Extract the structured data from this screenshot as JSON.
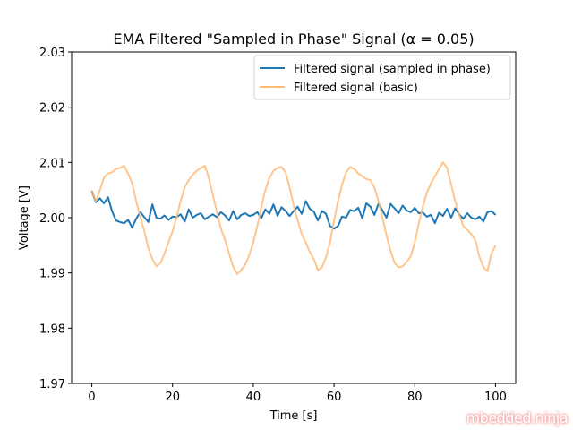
{
  "chart_data": {
    "type": "line",
    "title": "EMA Filtered \"Sampled in Phase\" Signal (α = 0.05)",
    "xlabel": "Time [s]",
    "ylabel": "Voltage [V]",
    "xlim": [
      -5,
      105
    ],
    "ylim": [
      1.97,
      2.03
    ],
    "xticks": [
      0,
      20,
      40,
      60,
      80,
      100
    ],
    "xtick_labels": [
      "0",
      "20",
      "40",
      "60",
      "80",
      "100"
    ],
    "yticks": [
      1.97,
      1.98,
      1.99,
      2.0,
      2.01,
      2.02,
      2.03
    ],
    "ytick_labels": [
      "1.97",
      "1.98",
      "1.99",
      "2.00",
      "2.01",
      "2.02",
      "2.03"
    ],
    "grid": false,
    "legend_position": "top-right",
    "series": [
      {
        "name": "Filtered signal (sampled in phase)",
        "color": "#1f77b4",
        "x": [
          0,
          1,
          2,
          3,
          4,
          5,
          6,
          7,
          8,
          9,
          10,
          11,
          12,
          13,
          14,
          15,
          16,
          17,
          18,
          19,
          20,
          21,
          22,
          23,
          24,
          25,
          26,
          27,
          28,
          29,
          30,
          31,
          32,
          33,
          34,
          35,
          36,
          37,
          38,
          39,
          40,
          41,
          42,
          43,
          44,
          45,
          46,
          47,
          48,
          49,
          50,
          51,
          52,
          53,
          54,
          55,
          56,
          57,
          58,
          59,
          60,
          61,
          62,
          63,
          64,
          65,
          66,
          67,
          68,
          69,
          70,
          71,
          72,
          73,
          74,
          75,
          76,
          77,
          78,
          79,
          80,
          81,
          82,
          83,
          84,
          85,
          86,
          87,
          88,
          89,
          90,
          91,
          92,
          93,
          94,
          95,
          96,
          97,
          98,
          99,
          100
        ],
        "y": [
          2.0048,
          2.0028,
          2.0035,
          2.0026,
          2.0037,
          2.0012,
          1.9995,
          1.9992,
          1.999,
          1.9996,
          1.9982,
          1.9998,
          2.001,
          2.0001,
          1.9992,
          2.0024,
          2.0,
          1.9998,
          2.0004,
          1.9996,
          2.0002,
          2.0001,
          2.0006,
          1.9993,
          2.0015,
          2.0,
          2.0005,
          2.0008,
          1.9997,
          2.0002,
          2.0006,
          2.0001,
          2.001,
          2.0004,
          1.9995,
          2.0012,
          1.9997,
          2.0005,
          2.0008,
          2.0003,
          2.0005,
          2.001,
          1.9999,
          2.0015,
          2.0007,
          2.0024,
          2.0003,
          2.0019,
          2.0012,
          2.0003,
          2.0012,
          2.002,
          2.0007,
          2.003,
          2.0016,
          2.0011,
          1.9995,
          2.0012,
          2.0007,
          1.9985,
          1.998,
          1.9985,
          2.0002,
          2.0,
          2.0014,
          2.0012,
          2.0018,
          1.9999,
          2.0026,
          2.002,
          2.0005,
          2.0025,
          2.0013,
          2.0,
          2.0025,
          2.0017,
          2.0008,
          2.0022,
          2.0013,
          2.001,
          2.0018,
          2.0008,
          2.0009,
          2.0002,
          2.0005,
          1.999,
          2.0009,
          2.0003,
          2.0016,
          2.0,
          2.0017,
          2.0006,
          1.9998,
          2.0008,
          2.0,
          1.9997,
          2.0002,
          1.9993,
          2.001,
          2.0012,
          2.0005
        ]
      },
      {
        "name": "Filtered signal (basic)",
        "color": "#ffbb78",
        "x": [
          0,
          1,
          2,
          3,
          4,
          5,
          6,
          7,
          8,
          9,
          10,
          11,
          12,
          13,
          14,
          15,
          16,
          17,
          18,
          19,
          20,
          21,
          22,
          23,
          24,
          25,
          26,
          27,
          28,
          29,
          30,
          31,
          32,
          33,
          34,
          35,
          36,
          37,
          38,
          39,
          40,
          41,
          42,
          43,
          44,
          45,
          46,
          47,
          48,
          49,
          50,
          51,
          52,
          53,
          54,
          55,
          56,
          57,
          58,
          59,
          60,
          61,
          62,
          63,
          64,
          65,
          66,
          67,
          68,
          69,
          70,
          71,
          72,
          73,
          74,
          75,
          76,
          77,
          78,
          79,
          80,
          81,
          82,
          83,
          84,
          85,
          86,
          87,
          88,
          89,
          90,
          91,
          92,
          93,
          94,
          95,
          96,
          97,
          98,
          99,
          100
        ],
        "y": [
          2.005,
          2.003,
          2.005,
          2.0072,
          2.008,
          2.0082,
          2.0088,
          2.009,
          2.0094,
          2.008,
          2.0062,
          2.003,
          2.0002,
          1.9975,
          1.9945,
          1.9925,
          1.9912,
          1.9918,
          1.9935,
          1.9955,
          1.9975,
          2.0,
          2.003,
          2.0055,
          2.0068,
          2.0078,
          2.0085,
          2.009,
          2.0094,
          2.0072,
          2.004,
          2.001,
          1.998,
          1.996,
          1.9935,
          1.9912,
          1.9898,
          1.9905,
          1.9915,
          1.9932,
          1.9955,
          1.9985,
          2.002,
          2.005,
          2.0072,
          2.0085,
          2.009,
          2.0092,
          2.0082,
          2.0055,
          2.0022,
          1.9995,
          1.997,
          1.9955,
          1.9938,
          1.9925,
          1.9905,
          1.991,
          1.9928,
          1.9955,
          1.9995,
          2.003,
          2.006,
          2.0082,
          2.0092,
          2.0088,
          2.008,
          2.0075,
          2.007,
          2.0068,
          2.0055,
          2.003,
          2.0,
          1.9968,
          1.994,
          1.9918,
          1.991,
          1.9912,
          1.992,
          1.993,
          1.9955,
          1.999,
          2.002,
          2.0045,
          2.0062,
          2.0075,
          2.0088,
          2.01,
          2.009,
          2.006,
          2.003,
          2.0005,
          1.9985,
          1.9978,
          1.997,
          1.996,
          1.993,
          1.991,
          1.9903,
          1.9935,
          1.995
        ]
      }
    ]
  },
  "watermark": "mbedded.ninja"
}
